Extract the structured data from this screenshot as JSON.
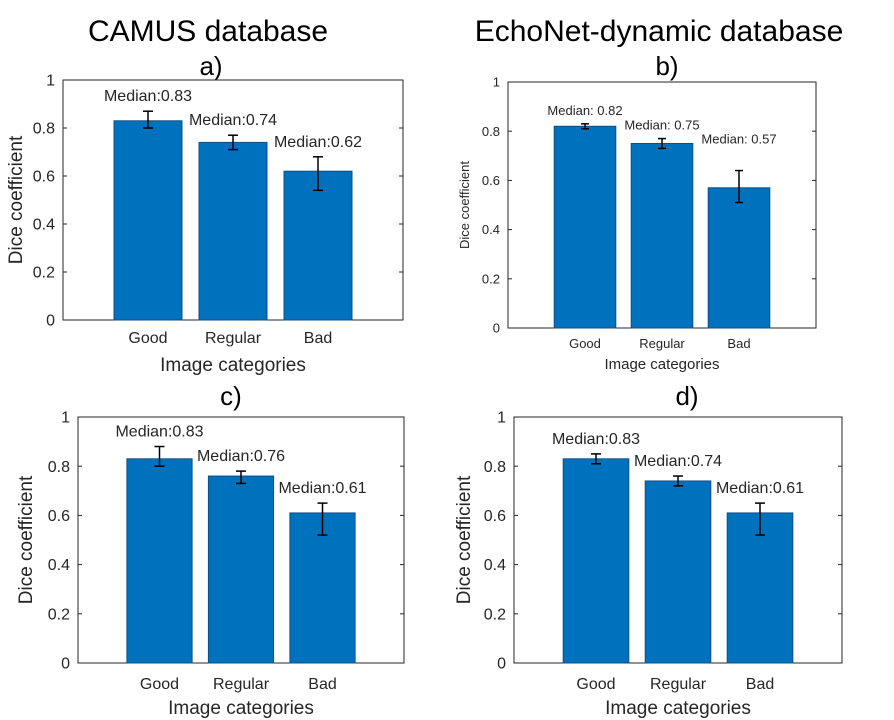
{
  "column_titles": [
    "CAMUS database",
    "EchoNet-dynamic database"
  ],
  "colors": {
    "bar_fill": "#0072BD",
    "bar_edge": "#0b4f86",
    "axis": "#262626",
    "error_bar": "#000000"
  },
  "chart_data": [
    {
      "type": "bar",
      "panel": "a)",
      "categories": [
        "Good",
        "Regular",
        "Bad"
      ],
      "values": [
        0.83,
        0.74,
        0.62
      ],
      "error_low": [
        0.8,
        0.71,
        0.54
      ],
      "error_high": [
        0.87,
        0.77,
        0.68
      ],
      "annotations": [
        "Median:0.83",
        "Median:0.74",
        "Median:0.62"
      ],
      "xlabel": "Image categories",
      "ylabel": "Dice coefficient",
      "ylim": [
        0,
        1
      ],
      "yticks": [
        "0",
        "0.2",
        "0.4",
        "0.6",
        "0.8",
        "1"
      ]
    },
    {
      "type": "bar",
      "panel": "b)",
      "categories": [
        "Good",
        "Regular",
        "Bad"
      ],
      "values": [
        0.82,
        0.75,
        0.57
      ],
      "error_low": [
        0.81,
        0.73,
        0.51
      ],
      "error_high": [
        0.83,
        0.77,
        0.64
      ],
      "annotations": [
        "Median: 0.82",
        "Median:  0.75",
        "Median: 0.57"
      ],
      "xlabel": "Image categories",
      "ylabel": "Dice coefficient",
      "ylim": [
        0,
        1
      ],
      "yticks": [
        "0",
        "0.2",
        "0.4",
        "0.6",
        "0.8",
        "1"
      ]
    },
    {
      "type": "bar",
      "panel": "c)",
      "categories": [
        "Good",
        "Regular",
        "Bad"
      ],
      "values": [
        0.83,
        0.76,
        0.61
      ],
      "error_low": [
        0.8,
        0.73,
        0.52
      ],
      "error_high": [
        0.88,
        0.78,
        0.65
      ],
      "annotations": [
        "Median:0.83",
        "Median:0.76",
        "Median:0.61"
      ],
      "xlabel": "Image categories",
      "ylabel": "Dice coefficient",
      "ylim": [
        0,
        1
      ],
      "yticks": [
        "0",
        "0.2",
        "0.4",
        "0.6",
        "0.8",
        "1"
      ]
    },
    {
      "type": "bar",
      "panel": "d)",
      "categories": [
        "Good",
        "Regular",
        "Bad"
      ],
      "values": [
        0.83,
        0.74,
        0.61
      ],
      "error_low": [
        0.81,
        0.72,
        0.52
      ],
      "error_high": [
        0.85,
        0.76,
        0.65
      ],
      "annotations": [
        "Median:0.83",
        "Median:0.74",
        "Median:0.61"
      ],
      "xlabel": "Image categories",
      "ylabel": "Dice coefficient",
      "ylim": [
        0,
        1
      ],
      "yticks": [
        "0",
        "0.2",
        "0.4",
        "0.6",
        "0.8",
        "1"
      ]
    }
  ]
}
